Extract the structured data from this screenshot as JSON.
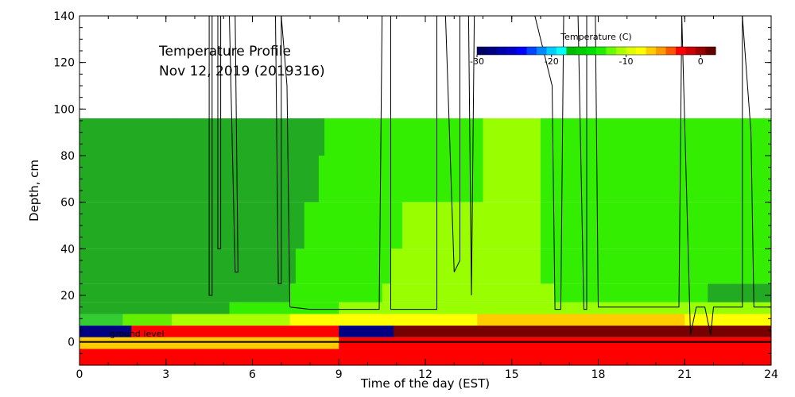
{
  "chart_data": {
    "type": "heatmap",
    "title": "Temperature Profile",
    "subtitle": "Nov 12, 2019 (2019316)",
    "xlabel": "Time of the day (EST)",
    "ylabel": "Depth, cm",
    "xlim": [
      0,
      24
    ],
    "ylim": [
      -10,
      140
    ],
    "xticks": [
      "0",
      "3",
      "6",
      "9",
      "12",
      "15",
      "18",
      "21",
      "24"
    ],
    "xtick_values": [
      0,
      3,
      6,
      9,
      12,
      15,
      18,
      21,
      24
    ],
    "yticks": [
      "0",
      "20",
      "40",
      "60",
      "80",
      "100",
      "120",
      "140"
    ],
    "ytick_values": [
      0,
      20,
      40,
      60,
      80,
      100,
      120,
      140
    ],
    "annotation": "ground level",
    "ground_level_depth": 0,
    "colorbar": {
      "title": "Temperature (C)",
      "range": [
        -30,
        2
      ],
      "tick_labels": [
        "-30",
        "-20",
        "-10",
        "0"
      ],
      "tick_values": [
        -30,
        -20,
        -10,
        0
      ],
      "colors": [
        "#000066",
        "#000080",
        "#0000aa",
        "#0000cc",
        "#0000ff",
        "#0044ff",
        "#0088ff",
        "#00ccff",
        "#00ffff",
        "#00bb00",
        "#00cc00",
        "#00dd00",
        "#22ee00",
        "#66ff00",
        "#aaff00",
        "#ddff00",
        "#ffff00",
        "#ffcc00",
        "#ff9900",
        "#ff5500",
        "#ff0000",
        "#cc0000",
        "#990000",
        "#660000"
      ]
    },
    "rows": [
      {
        "bottom": 80,
        "top": 96,
        "segments": [
          [
            0,
            3.3,
            "#22aa22"
          ],
          [
            3.3,
            8.5,
            "#22aa22"
          ],
          [
            8.5,
            14.0,
            "#33ee00"
          ],
          [
            14.0,
            16.0,
            "#99ff00"
          ],
          [
            16.0,
            21.5,
            "#33ee00"
          ],
          [
            21.5,
            24,
            "#33ee00"
          ]
        ]
      },
      {
        "bottom": 60,
        "top": 80,
        "segments": [
          [
            0,
            8.3,
            "#22aa22"
          ],
          [
            8.3,
            14.0,
            "#33ee00"
          ],
          [
            14.0,
            16.0,
            "#99ff00"
          ],
          [
            16.0,
            24,
            "#33ee00"
          ]
        ]
      },
      {
        "bottom": 40,
        "top": 60,
        "segments": [
          [
            0,
            7.8,
            "#22aa22"
          ],
          [
            7.8,
            11.2,
            "#33ee00"
          ],
          [
            11.2,
            16.0,
            "#99ff00"
          ],
          [
            16.0,
            24,
            "#33ee00"
          ]
        ]
      },
      {
        "bottom": 25,
        "top": 40,
        "segments": [
          [
            0,
            7.5,
            "#22aa22"
          ],
          [
            7.5,
            10.8,
            "#33ee00"
          ],
          [
            10.8,
            16.0,
            "#99ff00"
          ],
          [
            16.0,
            22.5,
            "#33ee00"
          ],
          [
            22.5,
            24,
            "#33ee00"
          ]
        ]
      },
      {
        "bottom": 17,
        "top": 25,
        "segments": [
          [
            0,
            7.3,
            "#22aa22"
          ],
          [
            7.3,
            10.5,
            "#33ee00"
          ],
          [
            10.5,
            16.5,
            "#99ff00"
          ],
          [
            16.5,
            21.8,
            "#33ee00"
          ],
          [
            21.8,
            24,
            "#22aa22"
          ]
        ]
      },
      {
        "bottom": 12,
        "top": 17,
        "segments": [
          [
            0,
            5.2,
            "#22aa22"
          ],
          [
            5.2,
            9.0,
            "#33ee00"
          ],
          [
            9.0,
            24,
            "#99ff00"
          ]
        ]
      },
      {
        "bottom": 7,
        "top": 12,
        "segments": [
          [
            0,
            1.5,
            "#33cc33"
          ],
          [
            1.5,
            3.2,
            "#66ee00"
          ],
          [
            3.2,
            7.3,
            "#aaff00"
          ],
          [
            7.3,
            13.8,
            "#ffff00"
          ],
          [
            13.8,
            21.0,
            "#ffcc00"
          ],
          [
            21.0,
            24,
            "#ffff00"
          ]
        ]
      },
      {
        "bottom": 2,
        "top": 7,
        "segments": [
          [
            0,
            1.8,
            "#000080"
          ],
          [
            1.8,
            9.0,
            "#ff0000"
          ],
          [
            9.0,
            10.9,
            "#000080"
          ],
          [
            10.9,
            24,
            "#770000"
          ]
        ]
      },
      {
        "bottom": -3,
        "top": 2,
        "segments": [
          [
            0,
            9.0,
            "#ffcc00"
          ],
          [
            9.0,
            24,
            "#ff0000"
          ]
        ]
      },
      {
        "bottom": -10,
        "top": -3,
        "segments": [
          [
            0,
            24,
            "#ff0000"
          ]
        ]
      }
    ],
    "series": [
      {
        "values": [
          [
            4.5,
            140
          ],
          [
            4.5,
            20
          ],
          [
            4.6,
            20
          ],
          [
            4.6,
            140
          ],
          [
            4.8,
            140
          ],
          [
            4.8,
            110
          ],
          [
            4.8,
            40
          ],
          [
            4.9,
            40
          ],
          [
            4.9,
            140
          ],
          [
            5.2,
            140
          ],
          [
            5.4,
            30
          ],
          [
            5.5,
            30
          ],
          [
            5.4,
            140
          ],
          [
            6.8,
            140
          ],
          [
            6.9,
            25
          ],
          [
            7.0,
            25
          ],
          [
            7.0,
            140
          ],
          [
            7.2,
            110
          ],
          [
            7.3,
            15
          ],
          [
            8.0,
            14
          ],
          [
            9.0,
            14
          ],
          [
            10.0,
            14
          ],
          [
            10.4,
            14
          ],
          [
            10.5,
            140
          ],
          [
            10.8,
            140
          ],
          [
            10.8,
            14
          ],
          [
            12.4,
            14
          ],
          [
            12.4,
            140
          ],
          [
            12.7,
            140
          ],
          [
            13.0,
            30
          ],
          [
            13.2,
            35
          ],
          [
            13.2,
            140
          ],
          [
            13.5,
            140
          ],
          [
            13.6,
            20
          ],
          [
            13.7,
            140
          ],
          [
            15.8,
            140
          ],
          [
            16.4,
            110
          ],
          [
            16.5,
            14
          ],
          [
            16.7,
            14
          ],
          [
            16.8,
            140
          ],
          [
            17.3,
            140
          ],
          [
            17.5,
            14
          ],
          [
            17.6,
            14
          ],
          [
            17.6,
            140
          ],
          [
            17.9,
            140
          ],
          [
            18.0,
            15
          ],
          [
            20.0,
            15
          ],
          [
            20.8,
            15
          ],
          [
            20.9,
            140
          ],
          [
            21.2,
            3
          ],
          [
            21.4,
            15
          ],
          [
            21.7,
            15
          ],
          [
            21.9,
            3
          ],
          [
            22.0,
            15
          ],
          [
            23.0,
            15
          ],
          [
            23.0,
            140
          ],
          [
            23.3,
            90
          ],
          [
            23.4,
            15
          ],
          [
            24,
            15
          ]
        ]
      }
    ]
  }
}
